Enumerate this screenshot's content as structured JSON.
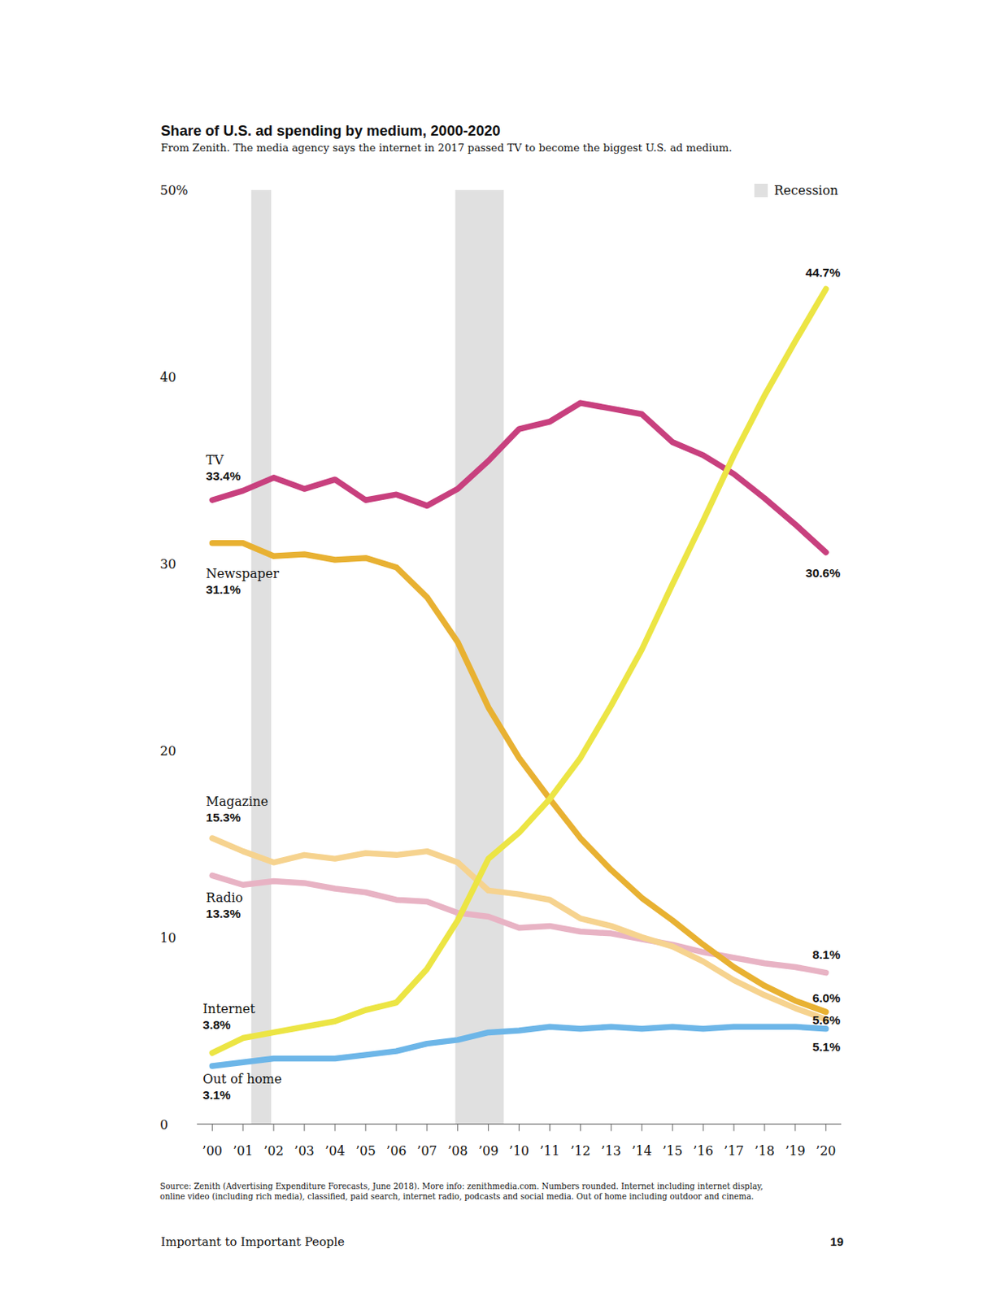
{
  "chart_data": {
    "type": "line",
    "title": "Share of U.S. ad spending by medium, 2000-2020",
    "subtitle": "From Zenith. The media agency says the internet in 2017 passed TV to become the biggest U.S. ad medium.",
    "x": [
      2000,
      2001,
      2002,
      2003,
      2004,
      2005,
      2006,
      2007,
      2008,
      2009,
      2010,
      2011,
      2012,
      2013,
      2014,
      2015,
      2016,
      2017,
      2018,
      2019,
      2020
    ],
    "xlim": [
      1999.5,
      2020.5
    ],
    "xticks": [
      {
        "value": 2000,
        "label": "’00"
      },
      {
        "value": 2001,
        "label": "’01"
      },
      {
        "value": 2002,
        "label": "’02"
      },
      {
        "value": 2003,
        "label": "’03"
      },
      {
        "value": 2004,
        "label": "’04"
      },
      {
        "value": 2005,
        "label": "’05"
      },
      {
        "value": 2006,
        "label": "’06"
      },
      {
        "value": 2007,
        "label": "’07"
      },
      {
        "value": 2008,
        "label": "’08"
      },
      {
        "value": 2009,
        "label": "’09"
      },
      {
        "value": 2010,
        "label": "’10"
      },
      {
        "value": 2011,
        "label": "’11"
      },
      {
        "value": 2012,
        "label": "’12"
      },
      {
        "value": 2013,
        "label": "’13"
      },
      {
        "value": 2014,
        "label": "’14"
      },
      {
        "value": 2015,
        "label": "’15"
      },
      {
        "value": 2016,
        "label": "’16"
      },
      {
        "value": 2017,
        "label": "’17"
      },
      {
        "value": 2018,
        "label": "’18"
      },
      {
        "value": 2019,
        "label": "’19"
      },
      {
        "value": 2020,
        "label": "’20"
      }
    ],
    "ylim": [
      0,
      50
    ],
    "yticks": [
      0,
      10,
      20,
      30,
      40,
      {
        "value": 50,
        "label": "50%"
      }
    ],
    "grid": false,
    "recession_label": "Recession",
    "recessions": [
      [
        2001.27,
        2001.92
      ],
      [
        2007.92,
        2009.5
      ]
    ],
    "series": [
      {
        "name": "Out of home",
        "color": "#6db6e8",
        "values": [
          3.1,
          3.3,
          3.5,
          3.5,
          3.5,
          3.7,
          3.9,
          4.3,
          4.5,
          4.9,
          5.0,
          5.2,
          5.1,
          5.2,
          5.1,
          5.2,
          5.1,
          5.2,
          5.2,
          5.2,
          5.1
        ],
        "value_labels": [
          "3.1%",
          null,
          null,
          null,
          null,
          null,
          null,
          null,
          null,
          null,
          null,
          null,
          null,
          null,
          null,
          null,
          null,
          null,
          null,
          null,
          "5.1%"
        ]
      },
      {
        "name": "Radio",
        "color": "#e8b3c4",
        "values": [
          13.3,
          12.8,
          13.0,
          12.9,
          12.6,
          12.4,
          12.0,
          11.9,
          11.3,
          11.1,
          10.5,
          10.6,
          10.3,
          10.2,
          9.9,
          9.6,
          9.2,
          8.9,
          8.6,
          8.4,
          8.1
        ],
        "value_labels": [
          "13.3%",
          null,
          null,
          null,
          null,
          null,
          null,
          null,
          null,
          null,
          null,
          null,
          null,
          null,
          null,
          null,
          null,
          null,
          null,
          null,
          "8.1%"
        ]
      },
      {
        "name": "Magazine",
        "color": "#f6d38f",
        "values": [
          15.3,
          14.6,
          14.0,
          14.4,
          14.2,
          14.5,
          14.4,
          14.6,
          14.0,
          12.5,
          12.3,
          12.0,
          11.0,
          10.6,
          10.0,
          9.5,
          8.7,
          7.7,
          6.9,
          6.2,
          5.6
        ],
        "value_labels": [
          "15.3%",
          null,
          null,
          null,
          null,
          null,
          null,
          null,
          null,
          null,
          null,
          null,
          null,
          null,
          null,
          null,
          null,
          null,
          null,
          null,
          "5.6%"
        ]
      },
      {
        "name": "Newspaper",
        "color": "#e8b132",
        "values": [
          31.1,
          31.1,
          30.4,
          30.5,
          30.2,
          30.3,
          29.8,
          28.2,
          25.8,
          22.3,
          19.6,
          17.4,
          15.3,
          13.6,
          12.1,
          10.9,
          9.6,
          8.4,
          7.4,
          6.6,
          6.0
        ],
        "value_labels": [
          "31.1%",
          null,
          null,
          null,
          null,
          null,
          null,
          null,
          null,
          null,
          null,
          null,
          null,
          null,
          null,
          null,
          null,
          null,
          null,
          null,
          "6.0%"
        ]
      },
      {
        "name": "TV",
        "color": "#c8407e",
        "values": [
          33.4,
          33.9,
          34.6,
          34.0,
          34.5,
          33.4,
          33.7,
          33.1,
          34.0,
          35.5,
          37.2,
          37.6,
          38.6,
          38.3,
          38.0,
          36.5,
          35.8,
          34.8,
          33.5,
          32.1,
          30.6
        ],
        "value_labels": [
          "33.4%",
          null,
          null,
          null,
          null,
          null,
          null,
          null,
          null,
          null,
          null,
          null,
          null,
          null,
          null,
          null,
          null,
          null,
          null,
          null,
          "30.6%"
        ]
      },
      {
        "name": "Internet",
        "color": "#ece544",
        "values": [
          3.8,
          4.6,
          4.9,
          5.2,
          5.5,
          6.1,
          6.5,
          8.3,
          10.9,
          14.2,
          15.6,
          17.4,
          19.6,
          22.4,
          25.4,
          28.9,
          32.3,
          35.8,
          39.0,
          41.9,
          44.7
        ],
        "value_labels": [
          "3.8%",
          null,
          null,
          null,
          null,
          null,
          null,
          null,
          null,
          null,
          null,
          null,
          null,
          null,
          null,
          null,
          null,
          null,
          null,
          null,
          "44.7%"
        ]
      }
    ],
    "notes": [
      "Source: Zenith (Advertising Expenditure Forecasts, June 2018). More info: zenithmedia.com. Numbers rounded. Internet including internet display,",
      "online video (including rich media), classified, paid search, internet radio, podcasts and social media. Out of home including outdoor and cinema."
    ],
    "footer": "Important to Important People",
    "page": "19"
  }
}
